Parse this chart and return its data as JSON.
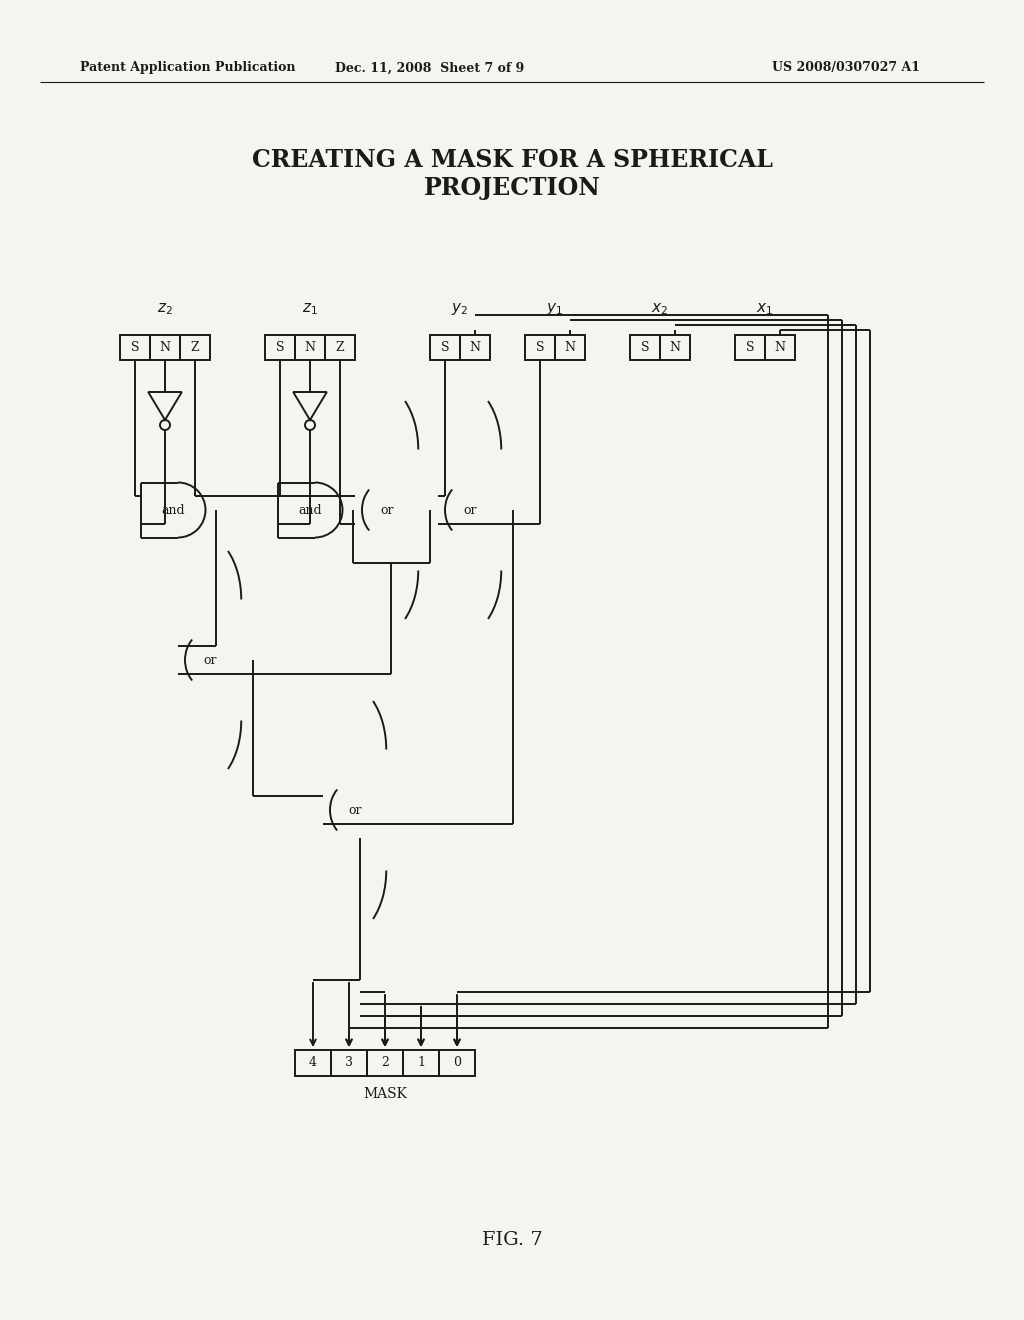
{
  "title_line1": "CREATING A MASK FOR A SPHERICAL",
  "title_line2": "PROJECTION",
  "header_left": "Patent Application Publication",
  "header_mid": "Dec. 11, 2008  Sheet 7 of 9",
  "header_right": "US 2008/0307027 A1",
  "fig_label": "FIG. 7",
  "bg_color": "#f5f5f0",
  "line_color": "#1a1a1a"
}
